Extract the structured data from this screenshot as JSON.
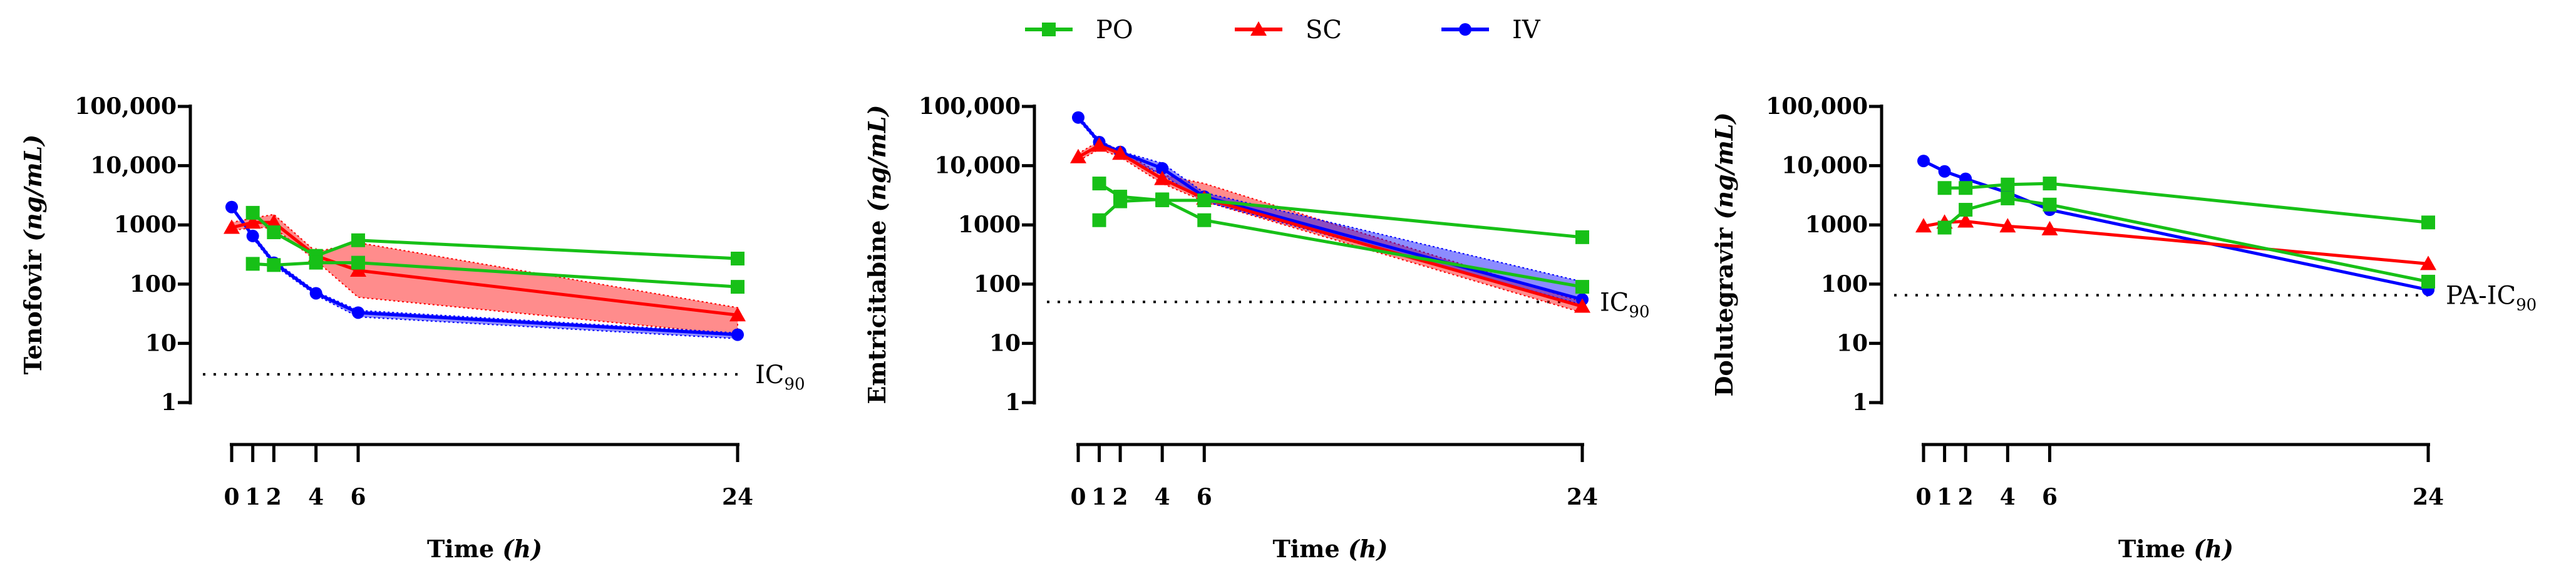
{
  "legend": [
    {
      "label": "PO",
      "color": "#17c017",
      "marker": "square"
    },
    {
      "label": "SC",
      "color": "#ff0000",
      "marker": "triangle"
    },
    {
      "label": "IV",
      "color": "#0000ff",
      "marker": "circle"
    }
  ],
  "chart_data": [
    {
      "type": "line",
      "title": "",
      "ylabel": {
        "name": "Tenofovir",
        "unit": "(ng/mL)"
      },
      "xlabel": {
        "name": "Time",
        "unit": "(h)"
      },
      "yscale": "log",
      "ylim": [
        1,
        100000
      ],
      "yticks": [
        1,
        10,
        100,
        1000,
        10000,
        100000
      ],
      "yticklabels": [
        "1",
        "10",
        "100",
        "1000",
        "10,000",
        "100,000"
      ],
      "xticks": [
        0,
        1,
        2,
        4,
        6,
        24
      ],
      "xticklabels": [
        "0",
        "1",
        "2",
        "4",
        "6",
        "24"
      ],
      "threshold": {
        "value": 3,
        "label": "IC",
        "sub": "90"
      },
      "series": [
        {
          "name": "PO",
          "x": [
            1,
            2,
            4,
            6,
            24
          ],
          "y": [
            1600,
            750,
            300,
            550,
            270
          ]
        },
        {
          "name": "PO",
          "x": [
            1,
            2,
            4,
            6,
            24
          ],
          "y": [
            220,
            210,
            230,
            230,
            90
          ]
        },
        {
          "name": "SC",
          "x": [
            0,
            1,
            2,
            4,
            6,
            24
          ],
          "y": [
            900,
            1100,
            1100,
            300,
            170,
            30
          ],
          "band_upper": [
            1100,
            1300,
            1500,
            350,
            500,
            40
          ],
          "band_lower": [
            800,
            900,
            900,
            250,
            60,
            14
          ]
        },
        {
          "name": "IV",
          "x": [
            0,
            1,
            2,
            4,
            6,
            24
          ],
          "y": [
            2000,
            650,
            230,
            70,
            33,
            14
          ],
          "band_upper": [
            2100,
            700,
            250,
            75,
            36,
            15
          ],
          "band_lower": [
            1900,
            600,
            210,
            65,
            28,
            12
          ]
        }
      ]
    },
    {
      "type": "line",
      "title": "",
      "ylabel": {
        "name": "Emtricitabine",
        "unit": "(ng/mL)"
      },
      "xlabel": {
        "name": "Time",
        "unit": "(h)"
      },
      "yscale": "log",
      "ylim": [
        1,
        100000
      ],
      "yticks": [
        1,
        10,
        100,
        1000,
        10000,
        100000
      ],
      "yticklabels": [
        "1",
        "10",
        "100",
        "1000",
        "10,000",
        "100,000"
      ],
      "xticks": [
        0,
        1,
        2,
        4,
        6,
        24
      ],
      "xticklabels": [
        "0",
        "1",
        "2",
        "4",
        "6",
        "24"
      ],
      "threshold": {
        "value": 50,
        "label": "IC",
        "sub": "90"
      },
      "series": [
        {
          "name": "PO",
          "x": [
            1,
            2,
            4,
            6,
            24
          ],
          "y": [
            5000,
            3000,
            2600,
            2600,
            620
          ]
        },
        {
          "name": "PO",
          "x": [
            1,
            2,
            4,
            6,
            24
          ],
          "y": [
            1200,
            2500,
            2700,
            1200,
            90
          ]
        },
        {
          "name": "SC",
          "x": [
            0,
            1,
            2,
            4,
            6,
            24
          ],
          "y": [
            14000,
            22000,
            16000,
            6000,
            2800,
            42
          ],
          "band_upper": [
            16000,
            26000,
            18000,
            7000,
            5000,
            50
          ],
          "band_lower": [
            12000,
            19000,
            14000,
            5000,
            2500,
            33
          ]
        },
        {
          "name": "IV",
          "x": [
            0,
            1,
            2,
            4,
            6,
            24
          ],
          "y": [
            65000,
            25000,
            17000,
            9000,
            3000,
            55
          ],
          "band_upper": [
            70000,
            27000,
            17500,
            11000,
            3500,
            110
          ],
          "band_lower": [
            60000,
            23000,
            15000,
            7000,
            2500,
            45
          ]
        }
      ]
    },
    {
      "type": "line",
      "title": "",
      "ylabel": {
        "name": "Dolutegravir",
        "unit": "(ng/mL)"
      },
      "xlabel": {
        "name": "Time",
        "unit": "(h)"
      },
      "yscale": "log",
      "ylim": [
        1,
        100000
      ],
      "yticks": [
        1,
        10,
        100,
        1000,
        10000,
        100000
      ],
      "yticklabels": [
        "1",
        "10",
        "100",
        "1000",
        "10,000",
        "100,000"
      ],
      "xticks": [
        0,
        1,
        2,
        4,
        6,
        24
      ],
      "xticklabels": [
        "0",
        "1",
        "2",
        "4",
        "6",
        "24"
      ],
      "threshold": {
        "value": 65,
        "label": "PA-IC",
        "sub": "90"
      },
      "series": [
        {
          "name": "PO",
          "x": [
            1,
            2,
            4,
            6,
            24
          ],
          "y": [
            4200,
            4200,
            4800,
            5000,
            1100
          ]
        },
        {
          "name": "PO",
          "x": [
            1,
            2,
            4,
            6,
            24
          ],
          "y": [
            900,
            1800,
            2800,
            2200,
            110
          ]
        },
        {
          "name": "SC",
          "x": [
            0,
            1,
            2,
            4,
            6,
            24
          ],
          "y": [
            950,
            1100,
            1150,
            950,
            850,
            220
          ]
        },
        {
          "name": "IV",
          "x": [
            0,
            1,
            2,
            4,
            6,
            24
          ],
          "y": [
            12000,
            8000,
            6000,
            3500,
            1800,
            80
          ]
        }
      ]
    }
  ]
}
